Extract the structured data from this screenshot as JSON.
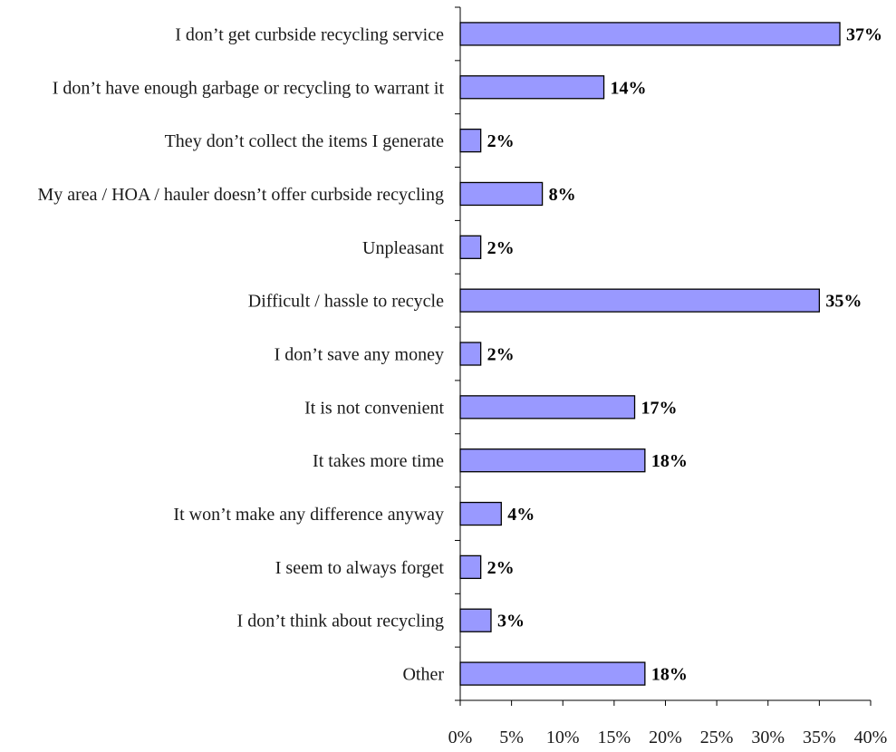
{
  "chart_data": {
    "type": "bar",
    "orientation": "horizontal",
    "categories": [
      "I don’t get curbside recycling service",
      "I don’t have enough garbage or recycling to warrant it",
      "They don’t collect the items I generate",
      "My area / HOA / hauler doesn’t offer curbside recycling",
      "Unpleasant",
      "Difficult / hassle to recycle",
      "I don’t save any money",
      "It is not convenient",
      "It takes more time",
      "It won’t make any difference anyway",
      "I seem to always forget",
      "I don’t think about recycling",
      "Other"
    ],
    "values": [
      37,
      14,
      2,
      8,
      2,
      35,
      2,
      17,
      18,
      4,
      2,
      3,
      18
    ],
    "data_labels": [
      "37%",
      "14%",
      "2%",
      "8%",
      "2%",
      "35%",
      "2%",
      "17%",
      "18%",
      "4%",
      "2%",
      "3%",
      "18%"
    ],
    "xlim": [
      0,
      40
    ],
    "x_ticks": [
      0,
      5,
      10,
      15,
      20,
      25,
      30,
      35,
      40
    ],
    "x_tick_labels": [
      "0%",
      "5%",
      "10%",
      "15%",
      "20%",
      "25%",
      "30%",
      "35%",
      "40%"
    ],
    "grid": false,
    "bar_color": "#9999ff",
    "bar_edge_color": "#000000",
    "title": "",
    "xlabel": "",
    "ylabel": ""
  }
}
